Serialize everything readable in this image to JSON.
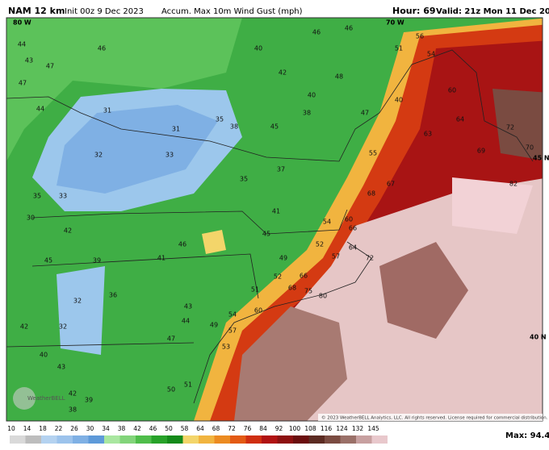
{
  "header": {
    "model": "NAM 12 km",
    "init": "Init 00z 9 Dec 2023",
    "field": "Accum. Max 10m Wind Gust (mph)",
    "hour": "Hour: 69",
    "valid": "Valid: 21z Mon 11 Dec 2023"
  },
  "map": {
    "grid_labels": [
      "70 W",
      "45 N",
      "40 N",
      "80 W"
    ],
    "labels": [
      44,
      47,
      46,
      43,
      47,
      44,
      31,
      31,
      33,
      35,
      38,
      45,
      32,
      33,
      35,
      30,
      42,
      45,
      39,
      41,
      46,
      35,
      38,
      40,
      42,
      40,
      46,
      48,
      46,
      51,
      56,
      54,
      60,
      64,
      72,
      69,
      70,
      63,
      55,
      47,
      40,
      37,
      41,
      45,
      54,
      52,
      57,
      60,
      66,
      67,
      68,
      64,
      72,
      49,
      66,
      68,
      75,
      52,
      51,
      60,
      54,
      49,
      57,
      53,
      43,
      44,
      47,
      36,
      32,
      42,
      32,
      40,
      43,
      50,
      51,
      42,
      39,
      38,
      82,
      80
    ],
    "logo": "WeatherBELL",
    "copyright": "© 2023 WeatherBELL Analytics, LLC. All rights reserved. License required for commercial distribution."
  },
  "colorbar": {
    "ticks": [
      10,
      14,
      18,
      22,
      26,
      30,
      34,
      38,
      42,
      46,
      50,
      58,
      64,
      68,
      72,
      76,
      84,
      92,
      100,
      108,
      116,
      124,
      132,
      145
    ],
    "colors": [
      "#d9d9d9",
      "#bdbdbd",
      "#b4d2f0",
      "#9cc3ec",
      "#7fb0e4",
      "#5e9ad9",
      "#a9e6a0",
      "#82d47a",
      "#4fbd4a",
      "#27a229",
      "#148a1a",
      "#f3d56a",
      "#f1b43f",
      "#ec8b21",
      "#e35a14",
      "#cf2e10",
      "#b01212",
      "#8c1010",
      "#6a0e0e",
      "#5b2b22",
      "#7a4b41",
      "#9a7068",
      "#c7a0a0",
      "#e8c8cc"
    ],
    "max": "Max: 94.4"
  }
}
